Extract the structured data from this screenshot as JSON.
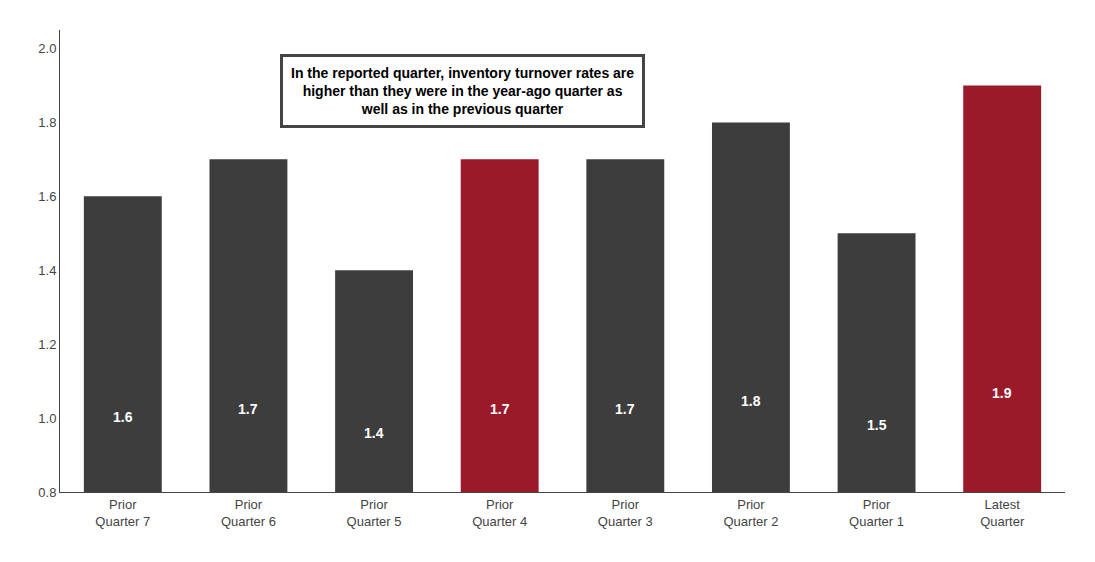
{
  "chart_data": {
    "type": "bar",
    "categories": [
      "Prior\nQuarter 7",
      "Prior\nQuarter 6",
      "Prior\nQuarter 5",
      "Prior\nQuarter 4",
      "Prior\nQuarter 3",
      "Prior\nQuarter 2",
      "Prior\nQuarter 1",
      "Latest\nQuarter"
    ],
    "values": [
      1.6,
      1.7,
      1.4,
      1.7,
      1.7,
      1.8,
      1.5,
      1.9
    ],
    "colors": [
      "#3d3d3d",
      "#3d3d3d",
      "#3d3d3d",
      "#9b1a2a",
      "#3d3d3d",
      "#3d3d3d",
      "#3d3d3d",
      "#9b1a2a"
    ],
    "ylim": [
      0.8,
      2.05
    ],
    "yticks": [
      0.8,
      {
        "value": 1.0,
        "label": "1.0"
      },
      1.2,
      1.4,
      1.6,
      1.8,
      {
        "value": 2.0,
        "label": "2.0"
      }
    ],
    "annotation": "In the reported quarter, inventory turnover rates are\nhigher than they were in the year-ago quarter as\nwell as in the previous quarter",
    "data_labels": true,
    "grid": false
  }
}
